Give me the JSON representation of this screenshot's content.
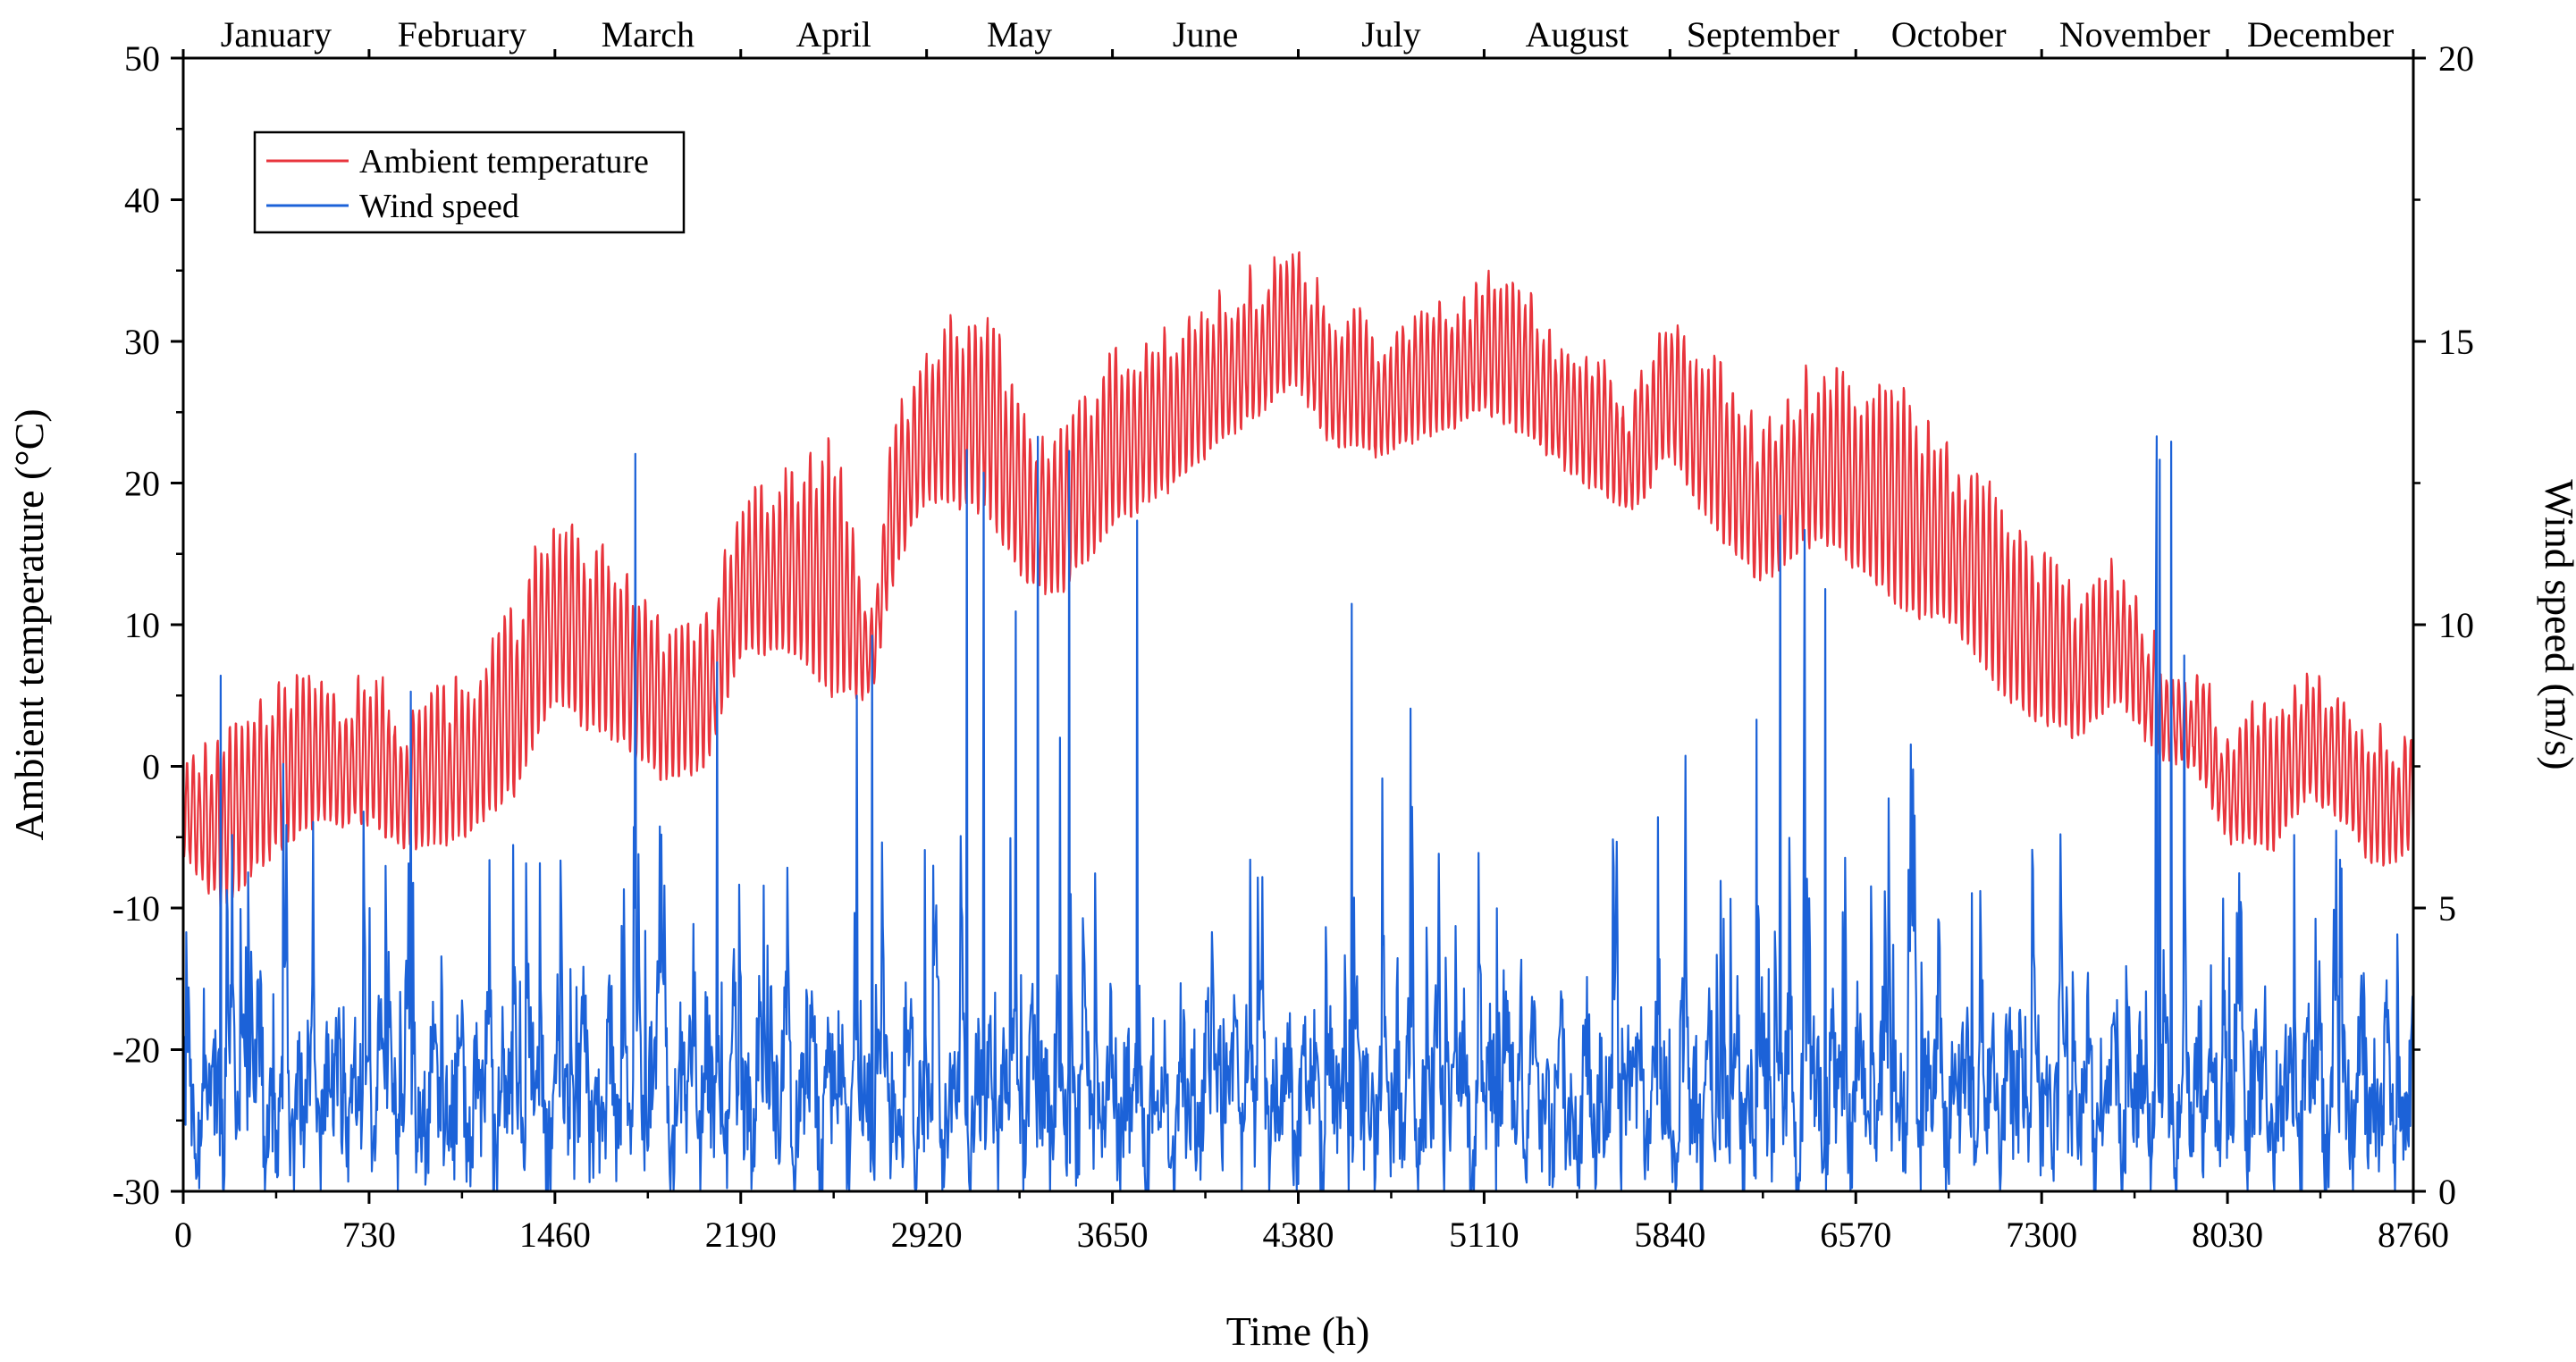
{
  "chart_data": {
    "type": "line",
    "xlabel": "Time (h)",
    "ylabel_left": "Ambient temperature (°C)",
    "ylabel_right": "Wind speed (m/s)",
    "xlim": [
      0,
      8760
    ],
    "ylim_left": [
      -30,
      50
    ],
    "ylim_right": [
      0,
      20
    ],
    "x_ticks": [
      0,
      730,
      1460,
      2190,
      2920,
      3650,
      4380,
      5110,
      5840,
      6570,
      7300,
      8030,
      8760
    ],
    "y_left_ticks": [
      -30,
      -20,
      -10,
      0,
      10,
      20,
      30,
      40,
      50
    ],
    "y_right_ticks": [
      0,
      5,
      10,
      15,
      20
    ],
    "months": [
      "January",
      "February",
      "March",
      "April",
      "May",
      "June",
      "July",
      "August",
      "September",
      "October",
      "November",
      "December"
    ],
    "legend_position": "top-left",
    "series": [
      {
        "name": "Ambient temperature",
        "axis": "left",
        "color": "#e8343c",
        "envelope_hour": [
          0,
          150,
          365,
          548,
          730,
          900,
          1095,
          1300,
          1460,
          1550,
          1700,
          1900,
          2050,
          2190,
          2400,
          2550,
          2700,
          2800,
          2920,
          3150,
          3300,
          3450,
          3650,
          3900,
          4150,
          4380,
          4500,
          4700,
          4850,
          5110,
          5300,
          5500,
          5700,
          5840,
          6000,
          6200,
          6400,
          6570,
          6750,
          6950,
          7150,
          7300,
          7450,
          7600,
          7750,
          7900,
          8030,
          8200,
          8350,
          8500,
          8600,
          8760
        ],
        "envelope_daily_min": [
          -6,
          -10,
          -6,
          -4,
          -4,
          -6,
          -5,
          -2,
          5,
          3,
          2,
          -1,
          0,
          8,
          8,
          5,
          5,
          14,
          19,
          18,
          13,
          12,
          17,
          20,
          24,
          27,
          23,
          22,
          23,
          25,
          23,
          20,
          18,
          22,
          17,
          13,
          16,
          14,
          11,
          10,
          5,
          3,
          2,
          5,
          1,
          0,
          -5,
          -6,
          -2,
          -4,
          -7,
          -6
        ],
        "envelope_daily_max": [
          0,
          1,
          5,
          5,
          5,
          3,
          5,
          10,
          18,
          15,
          14,
          9,
          10,
          18,
          20,
          22,
          11,
          24,
          29,
          32,
          24,
          22,
          28,
          30,
          33,
          36,
          32,
          30,
          31,
          34,
          32,
          28,
          25,
          31,
          28,
          23,
          27,
          26,
          25,
          21,
          18,
          14,
          11,
          14,
          8,
          6,
          2,
          4,
          6,
          5,
          2,
          1
        ],
        "peak_max": 38,
        "peak_min": -13
      },
      {
        "name": "Wind speed",
        "axis": "right",
        "color": "#1c62d8",
        "typical_range": [
          0,
          4
        ],
        "peak_max": 13.4
      }
    ]
  }
}
